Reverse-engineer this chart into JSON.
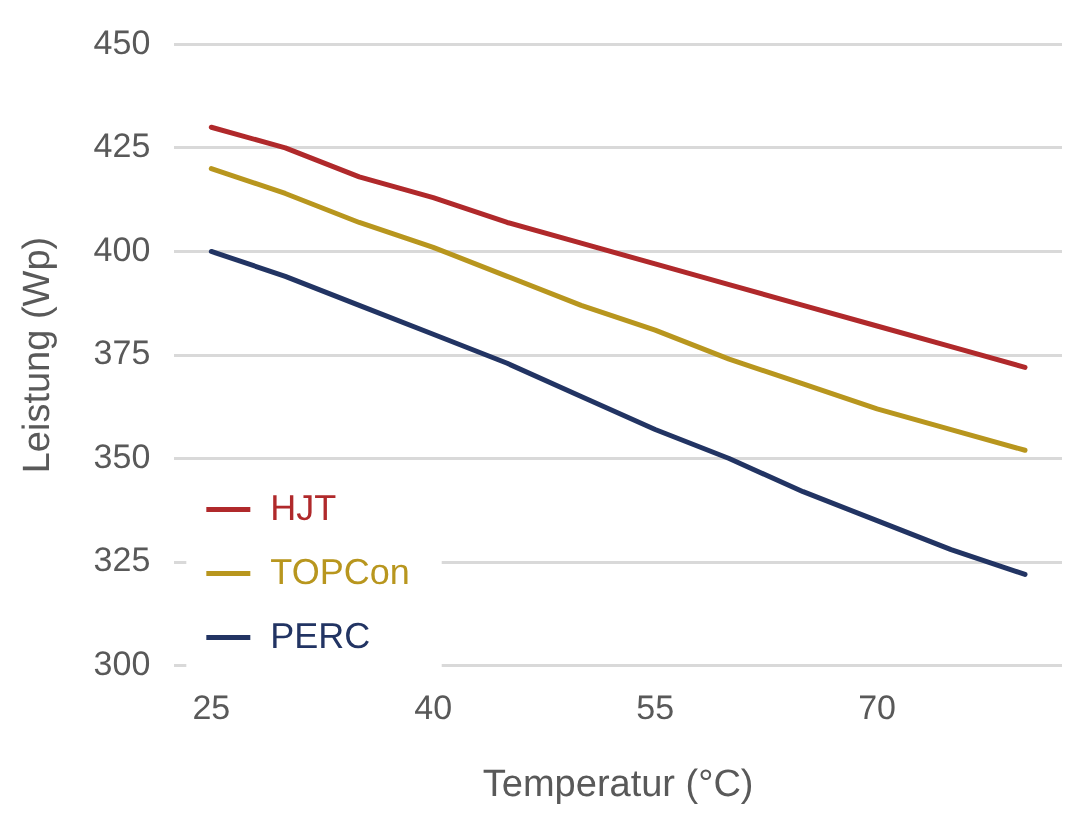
{
  "chart_data": {
    "type": "line",
    "xlabel": "Temperatur (°C)",
    "ylabel": "Leistung (Wp)",
    "categories": [
      "25",
      null,
      null,
      "40",
      null,
      null,
      "55",
      null,
      null,
      "70",
      null,
      null
    ],
    "series": [
      {
        "name": "HJT",
        "color": "#b0292b",
        "values": [
          430,
          425,
          418,
          413,
          407,
          402,
          397,
          392,
          387,
          382,
          377,
          372
        ]
      },
      {
        "name": "TOPCon",
        "color": "#b8961e",
        "values": [
          420,
          414,
          407,
          401,
          394,
          387,
          381,
          374,
          368,
          362,
          357,
          352
        ]
      },
      {
        "name": "PERC",
        "color": "#223463",
        "values": [
          400,
          394,
          387,
          380,
          373,
          365,
          357,
          350,
          342,
          335,
          328,
          322
        ]
      }
    ],
    "ylim": [
      300,
      450
    ],
    "yticks": [
      300,
      325,
      350,
      375,
      400,
      425,
      450
    ],
    "grid": "y",
    "legend": "bottom left",
    "marker": "none",
    "line_style": "solid"
  }
}
